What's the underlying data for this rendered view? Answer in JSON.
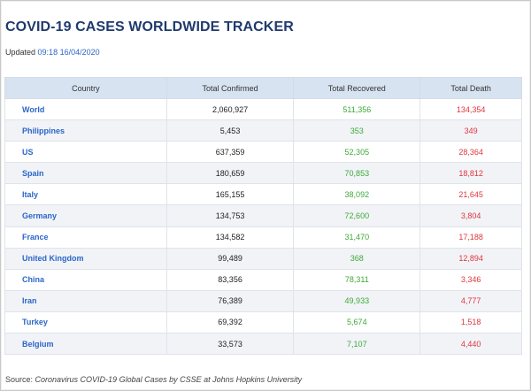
{
  "title": "COVID-19 CASES WORLDWIDE TRACKER",
  "updated": {
    "label": "Updated",
    "timestamp": "09:18 16/04/2020"
  },
  "table": {
    "headers": [
      "Country",
      "Total Confirmed",
      "Total Recovered",
      "Total Death"
    ],
    "rows": [
      {
        "country": "World",
        "confirmed": "2,060,927",
        "recovered": "511,356",
        "death": "134,354"
      },
      {
        "country": "Philippines",
        "confirmed": "5,453",
        "recovered": "353",
        "death": "349"
      },
      {
        "country": "US",
        "confirmed": "637,359",
        "recovered": "52,305",
        "death": "28,364"
      },
      {
        "country": "Spain",
        "confirmed": "180,659",
        "recovered": "70,853",
        "death": "18,812"
      },
      {
        "country": "Italy",
        "confirmed": "165,155",
        "recovered": "38,092",
        "death": "21,645"
      },
      {
        "country": "Germany",
        "confirmed": "134,753",
        "recovered": "72,600",
        "death": "3,804"
      },
      {
        "country": "France",
        "confirmed": "134,582",
        "recovered": "31,470",
        "death": "17,188"
      },
      {
        "country": "United Kingdom",
        "confirmed": "99,489",
        "recovered": "368",
        "death": "12,894"
      },
      {
        "country": "China",
        "confirmed": "83,356",
        "recovered": "78,311",
        "death": "3,346"
      },
      {
        "country": "Iran",
        "confirmed": "76,389",
        "recovered": "49,933",
        "death": "4,777"
      },
      {
        "country": "Turkey",
        "confirmed": "69,392",
        "recovered": "5,674",
        "death": "1,518"
      },
      {
        "country": "Belgium",
        "confirmed": "33,573",
        "recovered": "7,107",
        "death": "4,440"
      }
    ]
  },
  "source": {
    "prefix": "Source: ",
    "text": "Coronavirus COVID-19 Global Cases by CSSE at Johns Hopkins University"
  },
  "colors": {
    "title": "#1f3a6e",
    "link": "#2b66c9",
    "recovered": "#3daa38",
    "death": "#e0363d",
    "header_bg": "#d7e3f1"
  }
}
